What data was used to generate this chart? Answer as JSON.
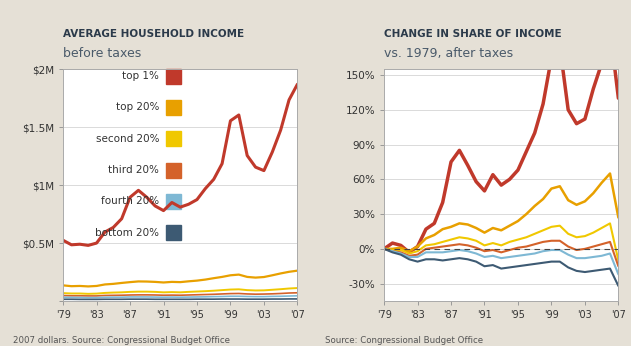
{
  "years": [
    1979,
    1980,
    1981,
    1982,
    1983,
    1984,
    1985,
    1986,
    1987,
    1988,
    1989,
    1990,
    1991,
    1992,
    1993,
    1994,
    1995,
    1996,
    1997,
    1998,
    1999,
    2000,
    2001,
    2002,
    2003,
    2004,
    2005,
    2006,
    2007
  ],
  "left_title_bold": "AVERAGE HOUSEHOLD INCOME",
  "left_title_sub": "before taxes",
  "right_title_bold": "CHANGE IN SHARE OF INCOME",
  "right_title_sub": "vs. 1979, after taxes",
  "left_source": "2007 dollars. Source: Congressional Budget Office",
  "right_source": "Source: Congressional Budget Office",
  "bg_color": "#e5e0d6",
  "plot_bg_color": "#ffffff",
  "title_bold_color": "#2b3a4a",
  "title_sub_color": "#4a5a6a",
  "source_color": "#555555",
  "legend_labels": [
    "top 1%",
    "top 20%",
    "second 20%",
    "third 20%",
    "fourth 20%",
    "bottom 20%"
  ],
  "legend_colors": [
    "#c0392b",
    "#e8a000",
    "#f0c800",
    "#d4622a",
    "#7eb8d4",
    "#3d5a73"
  ],
  "left_top1": [
    0.524,
    0.485,
    0.49,
    0.48,
    0.5,
    0.595,
    0.635,
    0.71,
    0.895,
    0.955,
    0.895,
    0.82,
    0.78,
    0.85,
    0.81,
    0.835,
    0.875,
    0.97,
    1.05,
    1.185,
    1.555,
    1.605,
    1.255,
    1.155,
    1.125,
    1.285,
    1.475,
    1.735,
    1.87
  ],
  "left_top20": [
    0.135,
    0.128,
    0.13,
    0.126,
    0.13,
    0.143,
    0.148,
    0.156,
    0.163,
    0.169,
    0.168,
    0.165,
    0.16,
    0.165,
    0.163,
    0.17,
    0.176,
    0.185,
    0.197,
    0.208,
    0.222,
    0.228,
    0.208,
    0.202,
    0.207,
    0.222,
    0.238,
    0.252,
    0.262
  ],
  "left_second20": [
    0.068,
    0.065,
    0.065,
    0.062,
    0.064,
    0.07,
    0.073,
    0.075,
    0.079,
    0.081,
    0.081,
    0.079,
    0.075,
    0.077,
    0.075,
    0.079,
    0.082,
    0.085,
    0.089,
    0.094,
    0.099,
    0.101,
    0.094,
    0.091,
    0.092,
    0.097,
    0.102,
    0.108,
    0.112
  ],
  "left_third20": [
    0.047,
    0.045,
    0.045,
    0.044,
    0.044,
    0.048,
    0.049,
    0.05,
    0.052,
    0.053,
    0.053,
    0.052,
    0.05,
    0.051,
    0.05,
    0.052,
    0.054,
    0.056,
    0.058,
    0.061,
    0.064,
    0.065,
    0.061,
    0.059,
    0.06,
    0.062,
    0.065,
    0.069,
    0.071
  ],
  "left_fourth20": [
    0.032,
    0.031,
    0.03,
    0.029,
    0.029,
    0.032,
    0.033,
    0.033,
    0.035,
    0.035,
    0.035,
    0.034,
    0.033,
    0.034,
    0.033,
    0.034,
    0.035,
    0.036,
    0.038,
    0.039,
    0.041,
    0.041,
    0.039,
    0.038,
    0.038,
    0.04,
    0.041,
    0.043,
    0.045
  ],
  "left_bottom20": [
    0.015,
    0.015,
    0.014,
    0.014,
    0.014,
    0.015,
    0.015,
    0.015,
    0.016,
    0.016,
    0.016,
    0.015,
    0.015,
    0.015,
    0.015,
    0.015,
    0.016,
    0.016,
    0.016,
    0.017,
    0.017,
    0.017,
    0.016,
    0.016,
    0.016,
    0.017,
    0.017,
    0.018,
    0.018
  ],
  "right_top1": [
    0,
    5,
    3,
    -3,
    2,
    17,
    22,
    40,
    75,
    85,
    72,
    58,
    50,
    64,
    55,
    60,
    68,
    84,
    100,
    125,
    165,
    175,
    120,
    108,
    112,
    138,
    160,
    190,
    130
  ],
  "right_top20": [
    0,
    0,
    1,
    -2,
    2,
    9,
    12,
    17,
    19,
    22,
    21,
    18,
    14,
    18,
    16,
    20,
    24,
    30,
    37,
    43,
    52,
    54,
    42,
    38,
    41,
    48,
    57,
    65,
    27
  ],
  "right_second20": [
    0,
    -1,
    -1,
    -4,
    -2,
    3,
    4,
    6,
    8,
    10,
    9,
    7,
    3,
    5,
    3,
    6,
    8,
    10,
    13,
    16,
    19,
    20,
    13,
    10,
    11,
    14,
    18,
    22,
    -10
  ],
  "right_third20": [
    0,
    -2,
    -3,
    -6,
    -5,
    0,
    1,
    2,
    3,
    4,
    3,
    1,
    -2,
    -1,
    -3,
    -1,
    1,
    2,
    4,
    6,
    7,
    7,
    2,
    -1,
    0,
    2,
    4,
    6,
    -15
  ],
  "right_fourth20": [
    0,
    -2,
    -4,
    -7,
    -7,
    -3,
    -3,
    -3,
    -2,
    -1,
    -2,
    -4,
    -7,
    -6,
    -8,
    -7,
    -6,
    -5,
    -4,
    -2,
    -1,
    -1,
    -5,
    -8,
    -8,
    -7,
    -6,
    -4,
    -22
  ],
  "right_bottom20": [
    0,
    -3,
    -5,
    -9,
    -11,
    -9,
    -9,
    -10,
    -9,
    -8,
    -9,
    -11,
    -15,
    -14,
    -17,
    -16,
    -15,
    -14,
    -13,
    -12,
    -11,
    -11,
    -16,
    -19,
    -20,
    -19,
    -18,
    -17,
    -32
  ],
  "left_ylim": [
    0,
    2000000
  ],
  "left_yticks": [
    0,
    500000,
    1000000,
    1500000,
    2000000
  ],
  "left_yticklabels": [
    "",
    "$0.5M",
    "$1M",
    "$1.5M",
    "$2M"
  ],
  "right_ylim": [
    -45,
    155
  ],
  "right_yticks": [
    -30,
    0,
    30,
    60,
    90,
    120,
    150
  ],
  "right_yticklabels": [
    "-30%",
    "0%",
    "30%",
    "60%",
    "90%",
    "120%",
    "150%"
  ],
  "xticks": [
    1979,
    1983,
    1987,
    1991,
    1995,
    1999,
    2003,
    2007
  ],
  "xticklabels": [
    "'79",
    "'83",
    "'87",
    "'91",
    "'95",
    "'99",
    "'03",
    "'07"
  ],
  "left_line_colors": [
    "#c0392b",
    "#e8a000",
    "#f0c800",
    "#d4622a",
    "#7eb8d4",
    "#3d5a73"
  ],
  "right_line_colors": [
    "#c0392b",
    "#e8a000",
    "#f0c800",
    "#d4622a",
    "#7eb8d4",
    "#3d5a73"
  ],
  "left_linewidths": [
    2.2,
    1.6,
    1.4,
    1.2,
    1.2,
    1.2
  ],
  "right_linewidths": [
    2.5,
    1.8,
    1.5,
    1.5,
    1.5,
    1.5
  ]
}
